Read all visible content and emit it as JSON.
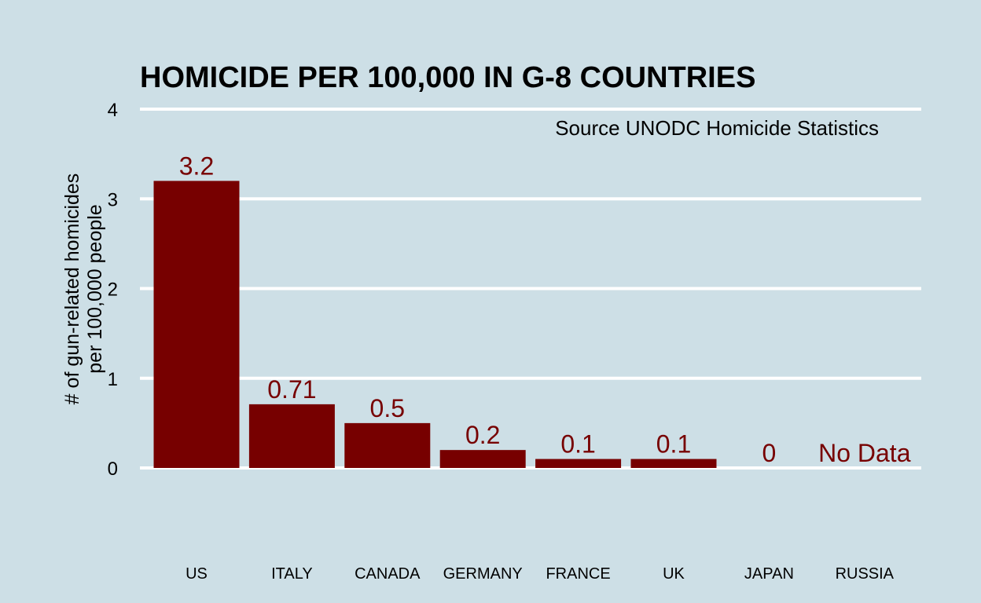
{
  "chart_data": {
    "type": "bar",
    "title": "HOMICIDE PER 100,000 IN G-8 COUNTRIES",
    "subtitle": "Source UNODC Homicide Statistics",
    "ylabel": [
      "# of gun-related homicides",
      "per 100,000 people"
    ],
    "xlabel": "",
    "categories": [
      "US",
      "ITALY",
      "CANADA",
      "GERMANY",
      "FRANCE",
      "UK",
      "JAPAN",
      "RUSSIA"
    ],
    "values": [
      3.2,
      0.71,
      0.5,
      0.2,
      0.1,
      0.1,
      0,
      null
    ],
    "data_labels": [
      "3.2",
      "0.71",
      "0.5",
      "0.2",
      "0.1",
      "0.1",
      "0",
      "No Data"
    ],
    "yticks": [
      0,
      1,
      2,
      3,
      4
    ],
    "ylim": [
      0,
      4
    ],
    "grid": "horizontal",
    "legend": "none",
    "colors": {
      "bar": "#770000",
      "label": "#770000",
      "grid": "#ffffff",
      "background": "#cddfe6"
    }
  }
}
